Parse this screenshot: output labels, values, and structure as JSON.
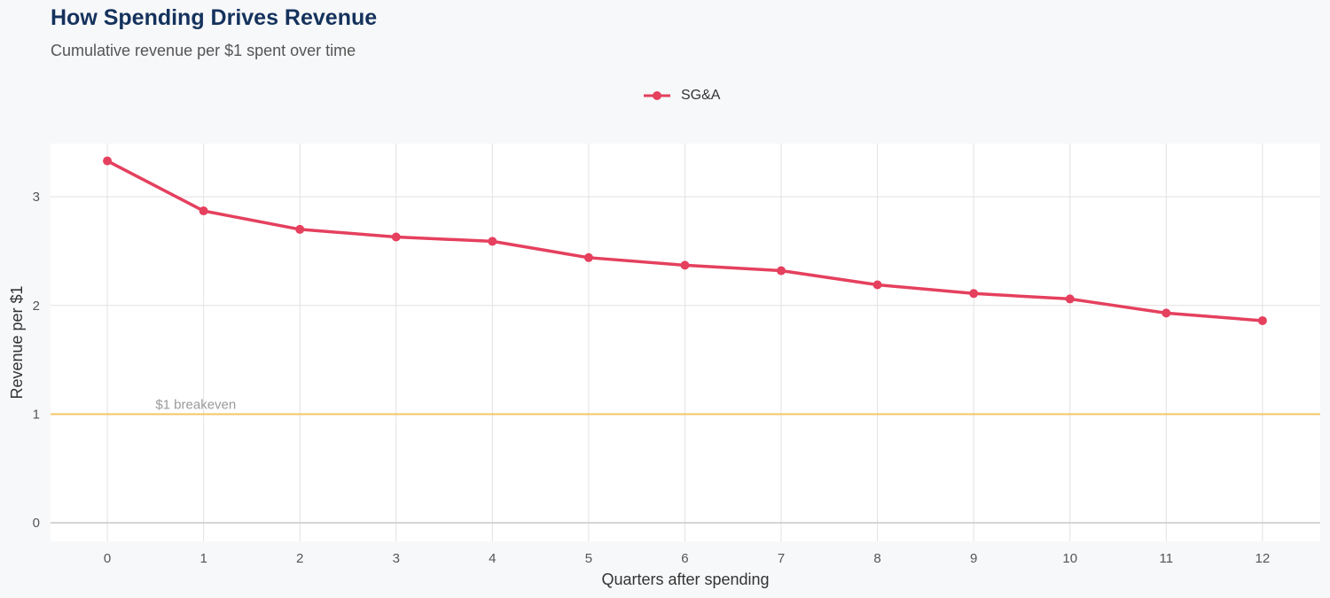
{
  "chart_data": {
    "type": "line",
    "title": "How Spending Drives Revenue",
    "subtitle": "Cumulative revenue per $1 spent over time",
    "xlabel": "Quarters after spending",
    "ylabel": "Revenue per $1",
    "x": [
      0,
      1,
      2,
      3,
      4,
      5,
      6,
      7,
      8,
      9,
      10,
      11,
      12
    ],
    "series": [
      {
        "name": "SG&A",
        "color": "#e5405e",
        "values": [
          3.33,
          2.87,
          2.7,
          2.63,
          2.59,
          2.44,
          2.37,
          2.32,
          2.19,
          2.11,
          2.06,
          1.93,
          1.86
        ]
      }
    ],
    "xlim": [
      -0.59,
      12.6
    ],
    "ylim": [
      -0.17,
      3.49
    ],
    "xticks": [
      "0",
      "1",
      "2",
      "3",
      "4",
      "5",
      "6",
      "7",
      "8",
      "9",
      "10",
      "11",
      "12"
    ],
    "yticks": [
      "0",
      "1",
      "2",
      "3"
    ],
    "reference_line": {
      "y": 1,
      "label": "$1 breakeven",
      "color": "#f6c46a"
    },
    "grid": true,
    "legend_position": "top"
  }
}
